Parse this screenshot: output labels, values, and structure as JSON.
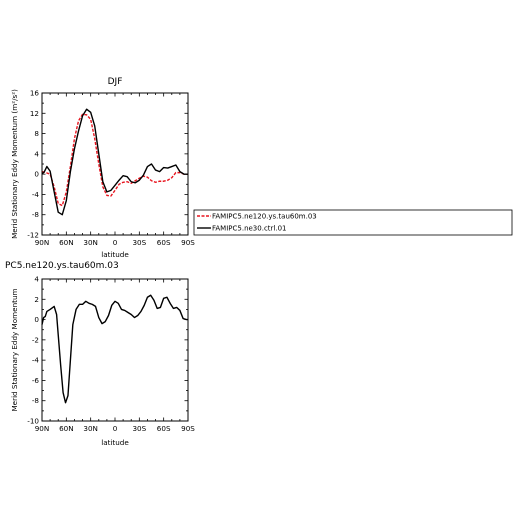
{
  "figure": {
    "top_title": "DJF",
    "bottom_title": "PC5.ne120.ys.tau60m.03"
  },
  "chart_data": [
    {
      "type": "line",
      "title": "DJF",
      "xlabel": "latitude",
      "ylabel": "Merid Stationary Eddy Momentum (m²/s²)",
      "xlim": [
        90,
        -90
      ],
      "ylim": [
        -12,
        16
      ],
      "x_ticks": [
        "90N",
        "60N",
        "30N",
        "0",
        "30S",
        "60S",
        "90S"
      ],
      "y_ticks": [
        "-12",
        "-8",
        "-4",
        "0",
        "4",
        "8",
        "12",
        "16"
      ],
      "grid": false,
      "legend_position": "right, outside plot",
      "series": [
        {
          "name": "FAMIPC5.ne120.ys.tau60m.03",
          "color": "#e8141e",
          "style": "dashed",
          "x": [
            90,
            85,
            80,
            75,
            70,
            65,
            60,
            55,
            50,
            45,
            40,
            35,
            30,
            25,
            20,
            15,
            10,
            5,
            0,
            -5,
            -10,
            -15,
            -20,
            -25,
            -30,
            -35,
            -40,
            -45,
            -50,
            -55,
            -60,
            -65,
            -70,
            -75,
            -80,
            -85,
            -90
          ],
          "values": [
            0.5,
            0.3,
            0,
            -2.5,
            -5.8,
            -6.2,
            -3.5,
            1.5,
            7,
            10.5,
            11.8,
            11.7,
            10.8,
            7,
            2,
            -2.5,
            -4.2,
            -4.3,
            -3.2,
            -2,
            -1.6,
            -1.5,
            -1.8,
            -1.3,
            -0.8,
            -0.4,
            -0.6,
            -1.3,
            -1.6,
            -1.4,
            -1.4,
            -1.2,
            -0.7,
            0.3,
            0.3,
            0,
            0
          ]
        },
        {
          "name": "FAMIPC5.ne30.ctrl.01",
          "color": "#000000",
          "style": "solid",
          "x": [
            90,
            87,
            84,
            80,
            75,
            70,
            65,
            60,
            55,
            50,
            45,
            40,
            35,
            30,
            25,
            20,
            15,
            10,
            5,
            0,
            -5,
            -10,
            -15,
            -20,
            -25,
            -30,
            -35,
            -40,
            -45,
            -50,
            -55,
            -60,
            -65,
            -70,
            -75,
            -80,
            -85,
            -90
          ],
          "values": [
            0,
            0.5,
            1.5,
            0.6,
            -3.5,
            -7.5,
            -8,
            -5.2,
            0.5,
            5,
            8.5,
            11.5,
            12.8,
            12.2,
            9.5,
            4,
            -1.5,
            -3.5,
            -3.2,
            -2.2,
            -1.2,
            -0.3,
            -0.5,
            -1.5,
            -1.7,
            -1.2,
            -0.2,
            1.5,
            2,
            0.8,
            0.5,
            1.3,
            1.2,
            1.5,
            1.8,
            0.5,
            0,
            0
          ]
        }
      ]
    },
    {
      "type": "line",
      "title": "PC5.ne120.ys.tau60m.03",
      "xlabel": "latitude",
      "ylabel": "Merid Stationary Eddy Momentum",
      "xlim": [
        90,
        -90
      ],
      "ylim": [
        -10,
        4
      ],
      "x_ticks": [
        "90N",
        "60N",
        "30N",
        "0",
        "30S",
        "60S",
        "90S"
      ],
      "y_ticks": [
        "-10",
        "-8",
        "-6",
        "-4",
        "-2",
        "0",
        "2",
        "4"
      ],
      "grid": false,
      "series": [
        {
          "color": "#000000",
          "style": "solid",
          "x": [
            90,
            88,
            86,
            84,
            80,
            75,
            72,
            70,
            67,
            64,
            61,
            58,
            55,
            52,
            48,
            44,
            40,
            36,
            32,
            28,
            24,
            20,
            16,
            12,
            8,
            4,
            0,
            -4,
            -8,
            -12,
            -16,
            -20,
            -24,
            -28,
            -32,
            -36,
            -40,
            -44,
            -48,
            -52,
            -56,
            -60,
            -64,
            -68,
            -72,
            -76,
            -80,
            -84,
            -88,
            -90
          ],
          "values": [
            -0.5,
            0.2,
            0.3,
            0.8,
            1,
            1.3,
            0.5,
            -1.5,
            -4.5,
            -7.2,
            -8.2,
            -7.5,
            -4,
            -0.5,
            1,
            1.5,
            1.5,
            1.8,
            1.6,
            1.5,
            1.3,
            0.2,
            -0.4,
            -0.2,
            0.4,
            1.4,
            1.8,
            1.6,
            1,
            0.9,
            0.7,
            0.5,
            0.2,
            0.4,
            0.8,
            1.4,
            2.2,
            2.4,
            1.9,
            1.1,
            1.2,
            2.1,
            2.2,
            1.6,
            1.1,
            1.2,
            0.9,
            0.1,
            0,
            0
          ]
        }
      ]
    }
  ]
}
